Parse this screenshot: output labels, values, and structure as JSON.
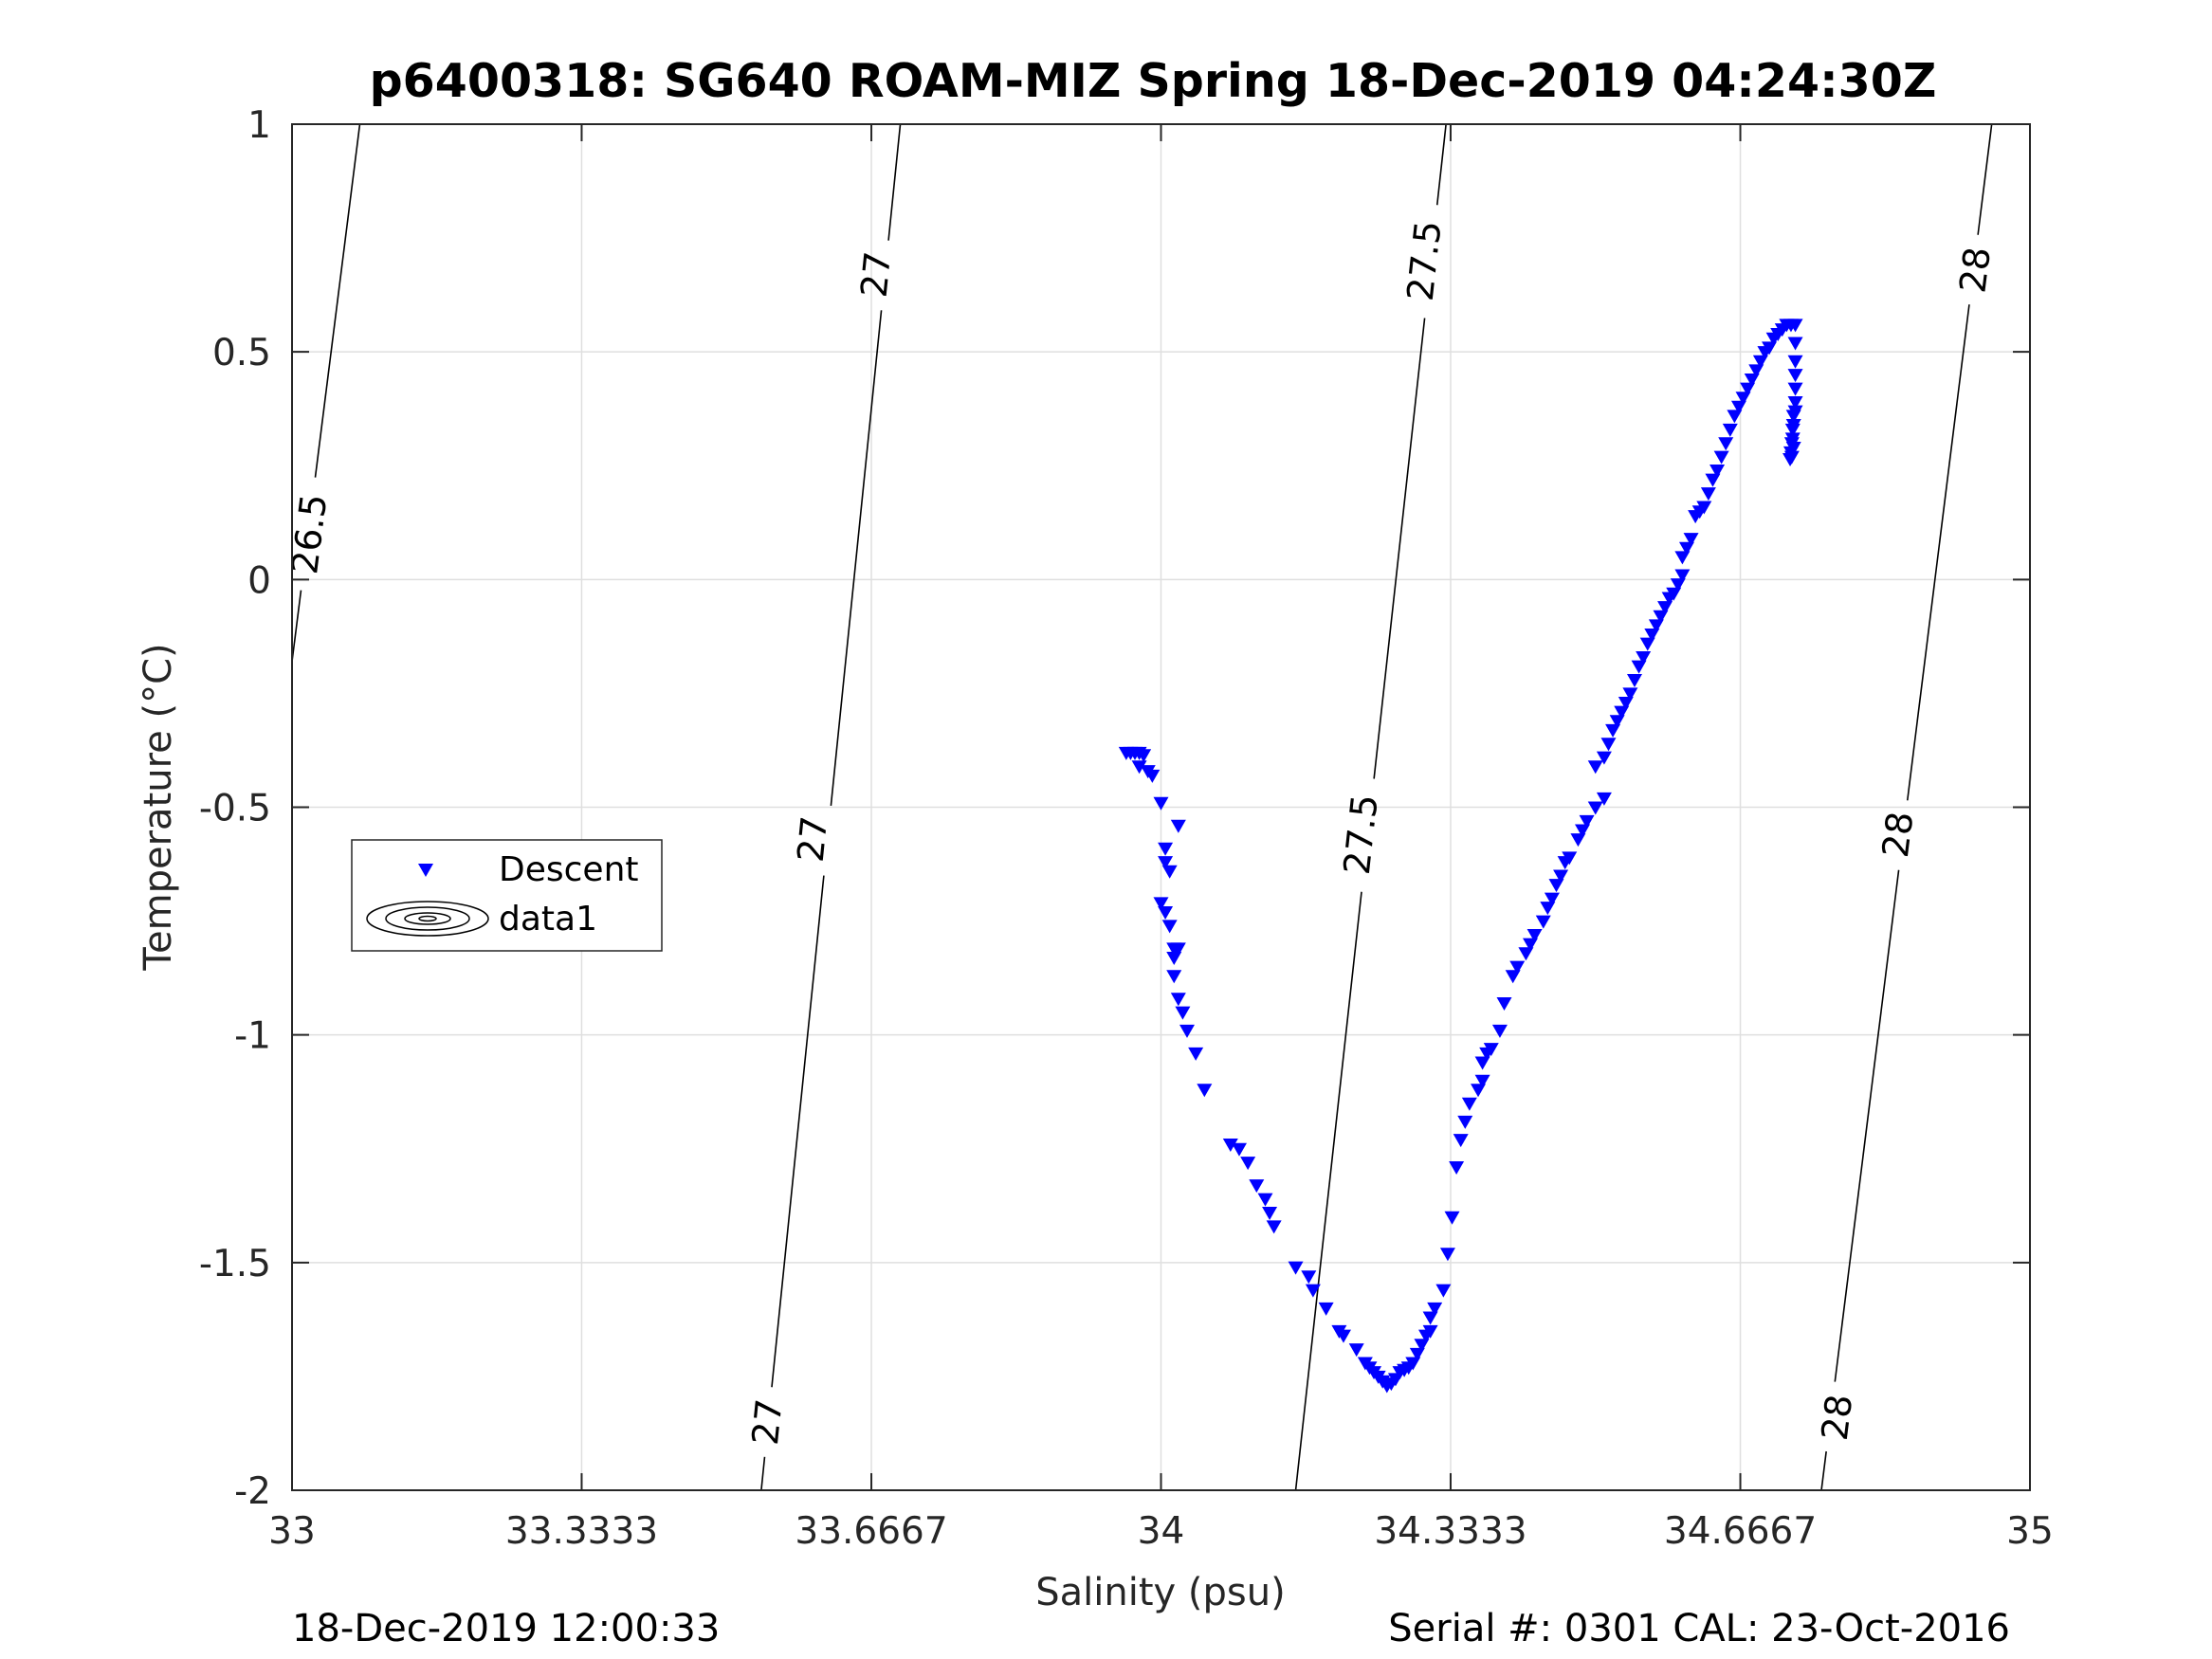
{
  "chart_data": {
    "type": "scatter",
    "title": "p6400318: SG640 ROAM-MIZ Spring 18-Dec-2019 04:24:30Z",
    "xlabel": "Salinity (psu)",
    "ylabel": "Temperature (°C)",
    "xlim": [
      33,
      35
    ],
    "ylim": [
      -2,
      1
    ],
    "xticks": [
      33,
      33.3333,
      33.6667,
      34,
      34.3333,
      34.6667,
      35
    ],
    "xtick_labels": [
      "33",
      "33.3333",
      "33.6667",
      "34",
      "34.3333",
      "34.6667",
      "35"
    ],
    "yticks": [
      -2,
      -1.5,
      -1,
      -0.5,
      0,
      0.5,
      1
    ],
    "ytick_labels": [
      "-2",
      "-1.5",
      "-1",
      "-0.5",
      "0",
      "0.5",
      "1"
    ],
    "grid": true,
    "legend": {
      "placement": "left",
      "entries": [
        "Descent",
        "data1"
      ]
    },
    "series": [
      {
        "name": "Descent",
        "marker": "down-triangle",
        "color": "#0000ff",
        "points": [
          [
            33.96,
            -0.38
          ],
          [
            33.965,
            -0.38
          ],
          [
            33.97,
            -0.38
          ],
          [
            33.975,
            -0.38
          ],
          [
            33.98,
            -0.385
          ],
          [
            33.975,
            -0.41
          ],
          [
            33.985,
            -0.42
          ],
          [
            33.99,
            -0.43
          ],
          [
            34.0,
            -0.49
          ],
          [
            34.02,
            -0.54
          ],
          [
            34.005,
            -0.59
          ],
          [
            34.005,
            -0.62
          ],
          [
            34.01,
            -0.64
          ],
          [
            34.0,
            -0.71
          ],
          [
            34.005,
            -0.73
          ],
          [
            34.01,
            -0.76
          ],
          [
            34.015,
            -0.81
          ],
          [
            34.02,
            -0.81
          ],
          [
            34.015,
            -0.83
          ],
          [
            34.015,
            -0.87
          ],
          [
            34.02,
            -0.92
          ],
          [
            34.025,
            -0.95
          ],
          [
            34.03,
            -0.99
          ],
          [
            34.04,
            -1.04
          ],
          [
            34.05,
            -1.12
          ],
          [
            34.08,
            -1.24
          ],
          [
            34.09,
            -1.25
          ],
          [
            34.1,
            -1.28
          ],
          [
            34.11,
            -1.33
          ],
          [
            34.12,
            -1.36
          ],
          [
            34.125,
            -1.39
          ],
          [
            34.13,
            -1.42
          ],
          [
            34.155,
            -1.51
          ],
          [
            34.17,
            -1.53
          ],
          [
            34.175,
            -1.56
          ],
          [
            34.19,
            -1.6
          ],
          [
            34.205,
            -1.65
          ],
          [
            34.21,
            -1.66
          ],
          [
            34.225,
            -1.69
          ],
          [
            34.235,
            -1.72
          ],
          [
            34.24,
            -1.73
          ],
          [
            34.245,
            -1.74
          ],
          [
            34.25,
            -1.75
          ],
          [
            34.255,
            -1.76
          ],
          [
            34.26,
            -1.77
          ],
          [
            34.265,
            -1.765
          ],
          [
            34.27,
            -1.755
          ],
          [
            34.275,
            -1.74
          ],
          [
            34.28,
            -1.735
          ],
          [
            34.285,
            -1.73
          ],
          [
            34.29,
            -1.72
          ],
          [
            34.295,
            -1.7
          ],
          [
            34.3,
            -1.68
          ],
          [
            34.305,
            -1.66
          ],
          [
            34.31,
            -1.65
          ],
          [
            34.31,
            -1.62
          ],
          [
            34.315,
            -1.6
          ],
          [
            34.325,
            -1.56
          ],
          [
            34.33,
            -1.48
          ],
          [
            34.335,
            -1.4
          ],
          [
            34.34,
            -1.29
          ],
          [
            34.345,
            -1.23
          ],
          [
            34.35,
            -1.19
          ],
          [
            34.355,
            -1.15
          ],
          [
            34.365,
            -1.12
          ],
          [
            34.37,
            -1.1
          ],
          [
            34.37,
            -1.06
          ],
          [
            34.375,
            -1.04
          ],
          [
            34.38,
            -1.03
          ],
          [
            34.39,
            -0.99
          ],
          [
            34.395,
            -0.93
          ],
          [
            34.405,
            -0.87
          ],
          [
            34.41,
            -0.85
          ],
          [
            34.42,
            -0.82
          ],
          [
            34.425,
            -0.8
          ],
          [
            34.43,
            -0.78
          ],
          [
            34.44,
            -0.75
          ],
          [
            34.445,
            -0.72
          ],
          [
            34.45,
            -0.7
          ],
          [
            34.455,
            -0.67
          ],
          [
            34.46,
            -0.65
          ],
          [
            34.465,
            -0.62
          ],
          [
            34.47,
            -0.61
          ],
          [
            34.48,
            -0.57
          ],
          [
            34.485,
            -0.55
          ],
          [
            34.49,
            -0.53
          ],
          [
            34.5,
            -0.5
          ],
          [
            34.51,
            -0.48
          ],
          [
            34.5,
            -0.41
          ],
          [
            34.51,
            -0.39
          ],
          [
            34.515,
            -0.36
          ],
          [
            34.52,
            -0.33
          ],
          [
            34.525,
            -0.31
          ],
          [
            34.53,
            -0.29
          ],
          [
            34.535,
            -0.27
          ],
          [
            34.54,
            -0.25
          ],
          [
            34.545,
            -0.22
          ],
          [
            34.55,
            -0.19
          ],
          [
            34.555,
            -0.17
          ],
          [
            34.56,
            -0.14
          ],
          [
            34.565,
            -0.12
          ],
          [
            34.57,
            -0.1
          ],
          [
            34.575,
            -0.08
          ],
          [
            34.58,
            -0.06
          ],
          [
            34.585,
            -0.04
          ],
          [
            34.59,
            -0.03
          ],
          [
            34.595,
            -0.01
          ],
          [
            34.6,
            0.01
          ],
          [
            34.6,
            0.05
          ],
          [
            34.605,
            0.07
          ],
          [
            34.61,
            0.09
          ],
          [
            34.615,
            0.14
          ],
          [
            34.62,
            0.15
          ],
          [
            34.625,
            0.16
          ],
          [
            34.63,
            0.19
          ],
          [
            34.635,
            0.22
          ],
          [
            34.64,
            0.24
          ],
          [
            34.645,
            0.27
          ],
          [
            34.65,
            0.3
          ],
          [
            34.655,
            0.33
          ],
          [
            34.66,
            0.36
          ],
          [
            34.665,
            0.38
          ],
          [
            34.67,
            0.4
          ],
          [
            34.675,
            0.42
          ],
          [
            34.68,
            0.44
          ],
          [
            34.685,
            0.46
          ],
          [
            34.69,
            0.48
          ],
          [
            34.695,
            0.5
          ],
          [
            34.7,
            0.51
          ],
          [
            34.705,
            0.53
          ],
          [
            34.71,
            0.54
          ],
          [
            34.715,
            0.55
          ],
          [
            34.72,
            0.56
          ],
          [
            34.725,
            0.56
          ],
          [
            34.73,
            0.56
          ],
          [
            34.73,
            0.52
          ],
          [
            34.73,
            0.48
          ],
          [
            34.73,
            0.45
          ],
          [
            34.73,
            0.42
          ],
          [
            34.73,
            0.39
          ],
          [
            34.728,
            0.36
          ],
          [
            34.727,
            0.33
          ],
          [
            34.726,
            0.3
          ],
          [
            34.725,
            0.28
          ],
          [
            34.724,
            0.265
          ],
          [
            34.726,
            0.27
          ],
          [
            34.728,
            0.29
          ],
          [
            34.727,
            0.31
          ],
          [
            34.728,
            0.34
          ],
          [
            34.73,
            0.37
          ]
        ]
      }
    ],
    "density_contours": [
      {
        "level": "26.5",
        "endpoints": [
          [
            33.0,
            -0.18
          ],
          [
            33.078,
            1.0
          ]
        ],
        "label_points": [
          [
            33.02,
            0.1
          ]
        ]
      },
      {
        "level": "27",
        "endpoints": [
          [
            33.54,
            -2.0
          ],
          [
            33.7,
            1.0
          ]
        ],
        "label_points": [
          [
            33.547,
            -1.85
          ],
          [
            33.599,
            -0.57
          ],
          [
            33.672,
            0.67
          ]
        ]
      },
      {
        "level": "27.5",
        "endpoints": [
          [
            34.155,
            -2.0
          ],
          [
            34.328,
            1.0
          ]
        ],
        "label_points": [
          [
            34.23,
            -0.56
          ],
          [
            34.303,
            0.7
          ]
        ]
      },
      {
        "level": "28",
        "endpoints": [
          [
            34.76,
            -2.0
          ],
          [
            34.956,
            1.0
          ]
        ],
        "label_points": [
          [
            34.778,
            -1.84
          ],
          [
            34.848,
            -0.56
          ],
          [
            34.937,
            0.68
          ]
        ]
      }
    ]
  },
  "footer": {
    "left": "18-Dec-2019 12:00:33",
    "right": "Serial #: 0301  CAL: 23-Oct-2016"
  }
}
